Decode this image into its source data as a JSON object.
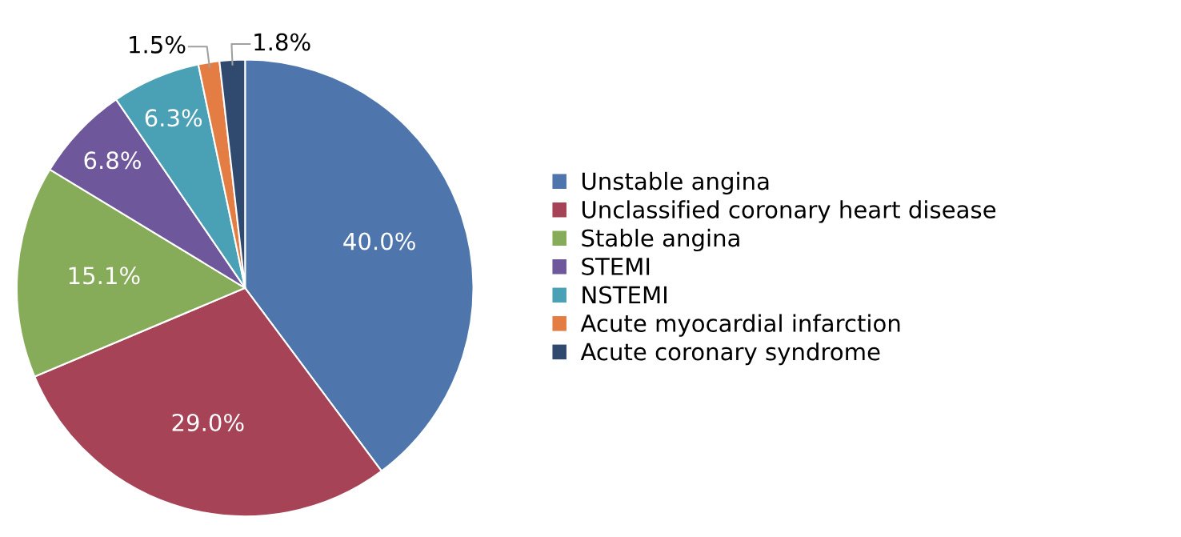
{
  "chart_data": {
    "type": "pie",
    "categories": [
      "Unstable angina",
      "Unclassified coronary heart disease",
      "Stable angina",
      "STEMI",
      "NSTEMI",
      "Acute myocardial infarction",
      "Acute coronary syndrome"
    ],
    "values": [
      40.0,
      29.0,
      15.1,
      6.8,
      6.3,
      1.5,
      1.8
    ],
    "value_labels": [
      "40.0%",
      "29.0%",
      "15.1%",
      "6.8%",
      "6.3%",
      "1.5%",
      "1.8%"
    ],
    "colors": [
      "#4f76ac",
      "#a64356",
      "#86ac5a",
      "#6e579a",
      "#4aa0b5",
      "#e47d43",
      "#2f4a6e"
    ],
    "legend": "right"
  }
}
